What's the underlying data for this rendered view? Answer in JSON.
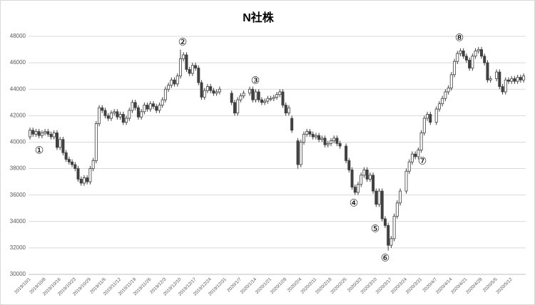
{
  "chart_data": {
    "type": "candlestick",
    "title": "N社株",
    "categories": [
      "2019/10/1",
      null,
      null,
      null,
      null,
      "2019/10/8",
      null,
      null,
      null,
      null,
      "2019/10/16",
      null,
      null,
      null,
      null,
      "2019/10/23",
      null,
      null,
      null,
      null,
      "2019/10/29",
      null,
      null,
      null,
      null,
      "2019/11/5",
      null,
      null,
      null,
      null,
      "2019/11/12",
      null,
      null,
      null,
      null,
      "2019/11/19",
      null,
      null,
      null,
      null,
      "2019/11/26",
      null,
      null,
      null,
      null,
      "2019/12/3",
      null,
      null,
      null,
      null,
      "2019/12/10",
      null,
      null,
      null,
      null,
      "2019/12/17",
      null,
      null,
      null,
      null,
      "2019/12/24",
      null,
      null,
      null,
      null,
      "2019/12/31",
      null,
      null,
      null,
      null,
      "2020/1/7",
      null,
      null,
      null,
      null,
      "2020/1/14",
      null,
      null,
      null,
      null,
      "2020/1/21",
      null,
      null,
      null,
      null,
      "2020/1/28",
      null,
      null,
      null,
      null,
      "2020/2/4",
      null,
      null,
      null,
      null,
      "2020/2/11",
      null,
      null,
      null,
      null,
      "2020/2/18",
      null,
      null,
      null,
      null,
      "2020/2/25",
      null,
      null,
      null,
      null,
      "2020/3/3",
      null,
      null,
      null,
      null,
      "2020/3/10",
      null,
      null,
      null,
      null,
      "2020/3/17",
      null,
      null,
      null,
      null,
      "2020/3/24",
      null,
      null,
      null,
      null,
      "2020/3/31",
      null,
      null,
      null,
      null,
      "2020/4/7",
      null,
      null,
      null,
      null,
      "2020/4/14",
      null,
      null,
      null,
      null,
      "2020/4/21",
      null,
      null,
      null,
      null,
      "2020/4/28",
      null,
      null,
      null,
      null,
      "2020/5/5",
      null,
      null,
      null,
      null,
      "2020/5/12",
      null,
      null,
      null,
      null
    ],
    "open": [
      40400,
      40900,
      40600,
      40800,
      40500,
      40700,
      40800,
      40600,
      40400,
      40700,
      39600,
      40200,
      39200,
      38700,
      38500,
      38300,
      38000,
      37200,
      36900,
      37300,
      37000,
      38000,
      38600,
      41400,
      42600,
      42400,
      42000,
      41800,
      42200,
      42300,
      41900,
      42100,
      41500,
      41800,
      42400,
      43000,
      42600,
      41900,
      42300,
      42800,
      42500,
      42900,
      42700,
      42400,
      42800,
      43200,
      44000,
      44300,
      44700,
      44400,
      45000,
      46300,
      46600,
      45500,
      45200,
      45800,
      45600,
      44500,
      43400,
      43900,
      44200,
      43900,
      43700,
      43800,
      null,
      null,
      null,
      43700,
      43000,
      42200,
      43200,
      43500,
      null,
      43700,
      44000,
      43200,
      43800,
      43200,
      43000,
      43100,
      43300,
      43300,
      43400,
      43600,
      43800,
      42800,
      42200,
      41800,
      null,
      40100,
      38300,
      40000,
      40600,
      40800,
      40600,
      40400,
      40500,
      40200,
      40300,
      39800,
      39900,
      40100,
      40300,
      39900,
      null,
      39700,
      38600,
      37900,
      36600,
      36200,
      36800,
      37500,
      37900,
      37200,
      37500,
      36300,
      35300,
      36300,
      34200,
      33700,
      32200,
      32700,
      34400,
      35400,
      null,
      36300,
      37800,
      38500,
      39100,
      38900,
      39400,
      40700,
      41800,
      42100,
      null,
      41500,
      42500,
      42900,
      43300,
      43800,
      44100,
      45100,
      46100,
      46700,
      46900,
      46500,
      46200,
      45600,
      46500,
      46900,
      47000,
      46500,
      46000,
      44700,
      null,
      44800,
      45300,
      44200,
      43800,
      44700,
      44600,
      44800,
      44600,
      44900,
      44700
    ],
    "high": [
      41100,
      41100,
      41000,
      41000,
      40900,
      41000,
      41000,
      40800,
      40900,
      40900,
      40400,
      40400,
      39400,
      38900,
      38700,
      38500,
      38200,
      37400,
      37500,
      37500,
      38200,
      38800,
      41600,
      42800,
      42800,
      42600,
      42200,
      42400,
      42500,
      42500,
      42300,
      42300,
      42000,
      42600,
      43200,
      43200,
      42800,
      42500,
      43000,
      43000,
      43100,
      43100,
      42900,
      43000,
      43400,
      44200,
      44500,
      44900,
      44900,
      45200,
      47000,
      46800,
      46800,
      45700,
      46000,
      46000,
      45800,
      44700,
      44100,
      44400,
      44400,
      44100,
      44000,
      44200,
      null,
      null,
      null,
      43900,
      43200,
      43400,
      43700,
      43900,
      null,
      44200,
      44200,
      44000,
      44000,
      43400,
      43300,
      43500,
      43500,
      43600,
      43800,
      44000,
      44000,
      43000,
      42800,
      42000,
      null,
      40300,
      40200,
      40800,
      41000,
      41000,
      40800,
      40700,
      40700,
      40500,
      40500,
      40100,
      40300,
      40500,
      40500,
      40100,
      null,
      39900,
      38800,
      38100,
      36800,
      37000,
      37700,
      38100,
      38100,
      37700,
      37700,
      36500,
      36500,
      36500,
      34400,
      33900,
      32900,
      34600,
      35600,
      36500,
      null,
      38000,
      38700,
      39300,
      39300,
      39600,
      40900,
      42000,
      42300,
      42300,
      null,
      42700,
      43100,
      43500,
      44000,
      44300,
      45300,
      46300,
      46900,
      47100,
      47100,
      46700,
      46400,
      46700,
      47100,
      47200,
      47200,
      46700,
      46200,
      45000,
      null,
      45500,
      45500,
      44400,
      44900,
      44900,
      45000,
      45000,
      45100,
      45100,
      45200
    ],
    "low": [
      40200,
      40400,
      40400,
      40300,
      40300,
      40500,
      40400,
      40200,
      40200,
      39400,
      39400,
      39000,
      38500,
      38300,
      38100,
      37800,
      37000,
      36700,
      36700,
      36800,
      36800,
      37800,
      38400,
      41200,
      42200,
      41800,
      41600,
      41600,
      42000,
      41700,
      41700,
      41300,
      41300,
      41600,
      42200,
      42400,
      41700,
      41700,
      42100,
      42300,
      42300,
      42500,
      42200,
      42200,
      42600,
      43000,
      43800,
      44100,
      44200,
      44200,
      44800,
      46100,
      45300,
      45000,
      45000,
      45400,
      44300,
      43200,
      43200,
      43700,
      43700,
      43500,
      43500,
      43600,
      null,
      null,
      null,
      42800,
      42000,
      42000,
      43000,
      43300,
      null,
      43500,
      43000,
      43000,
      43000,
      42800,
      42800,
      42900,
      43100,
      43100,
      43200,
      43400,
      42600,
      42000,
      42000,
      40700,
      null,
      38000,
      38100,
      39800,
      40400,
      40400,
      40200,
      40200,
      40000,
      40000,
      39600,
      39600,
      39700,
      39900,
      39700,
      39500,
      null,
      38400,
      37700,
      36400,
      36000,
      36000,
      36600,
      37300,
      37000,
      37000,
      36100,
      35100,
      35100,
      34000,
      33500,
      31800,
      32000,
      32500,
      34200,
      35200,
      null,
      36100,
      37600,
      38300,
      38700,
      38700,
      39200,
      40500,
      41600,
      41300,
      null,
      41300,
      42300,
      42700,
      43100,
      43600,
      43900,
      44900,
      45900,
      46500,
      46300,
      46000,
      45400,
      45400,
      46300,
      46700,
      46300,
      45800,
      44500,
      44500,
      null,
      44600,
      44000,
      43600,
      43600,
      44400,
      44400,
      44400,
      44400,
      44500,
      44500
    ],
    "close": [
      40900,
      40600,
      40800,
      40500,
      40700,
      40800,
      40600,
      40400,
      40700,
      39600,
      40200,
      39200,
      38700,
      38500,
      38300,
      38000,
      37200,
      36900,
      37300,
      37000,
      38000,
      38600,
      41400,
      42600,
      42400,
      42000,
      41800,
      42200,
      42300,
      41900,
      42100,
      41500,
      41800,
      42400,
      43000,
      42600,
      41900,
      42300,
      42800,
      42500,
      42900,
      42700,
      42400,
      42800,
      43200,
      44000,
      44300,
      44700,
      44400,
      45000,
      46300,
      46600,
      45500,
      45200,
      45800,
      45600,
      44500,
      43400,
      43900,
      44200,
      43900,
      43700,
      43800,
      44000,
      null,
      null,
      null,
      43000,
      42200,
      43200,
      43500,
      43700,
      null,
      44000,
      43200,
      43800,
      43200,
      43000,
      43100,
      43300,
      43300,
      43400,
      43600,
      43800,
      42800,
      42200,
      42600,
      40900,
      null,
      38300,
      40000,
      40600,
      40800,
      40600,
      40400,
      40500,
      40200,
      40300,
      39800,
      39900,
      40100,
      40300,
      39900,
      39700,
      null,
      38600,
      37900,
      36600,
      36200,
      36800,
      37500,
      37900,
      37200,
      37500,
      36300,
      35300,
      36300,
      34200,
      33700,
      32200,
      32700,
      34400,
      35400,
      36300,
      null,
      37800,
      38500,
      39100,
      38900,
      39400,
      40700,
      41800,
      42100,
      41500,
      null,
      42500,
      42900,
      43300,
      43800,
      44100,
      45100,
      46100,
      46700,
      46900,
      46500,
      46200,
      45600,
      46500,
      46900,
      47000,
      46500,
      46000,
      44700,
      44800,
      null,
      45300,
      44200,
      43800,
      44700,
      44600,
      44800,
      44600,
      44900,
      44700,
      45000
    ],
    "ylim": [
      30000,
      48000
    ],
    "yticks": [
      30000,
      32000,
      34000,
      36000,
      38000,
      40000,
      42000,
      44000,
      46000,
      48000
    ],
    "grid": true,
    "color": "#404040",
    "annotations": [
      "①",
      "②",
      "③",
      "④",
      "⑤",
      "⑥",
      "⑦",
      "⑧"
    ]
  }
}
